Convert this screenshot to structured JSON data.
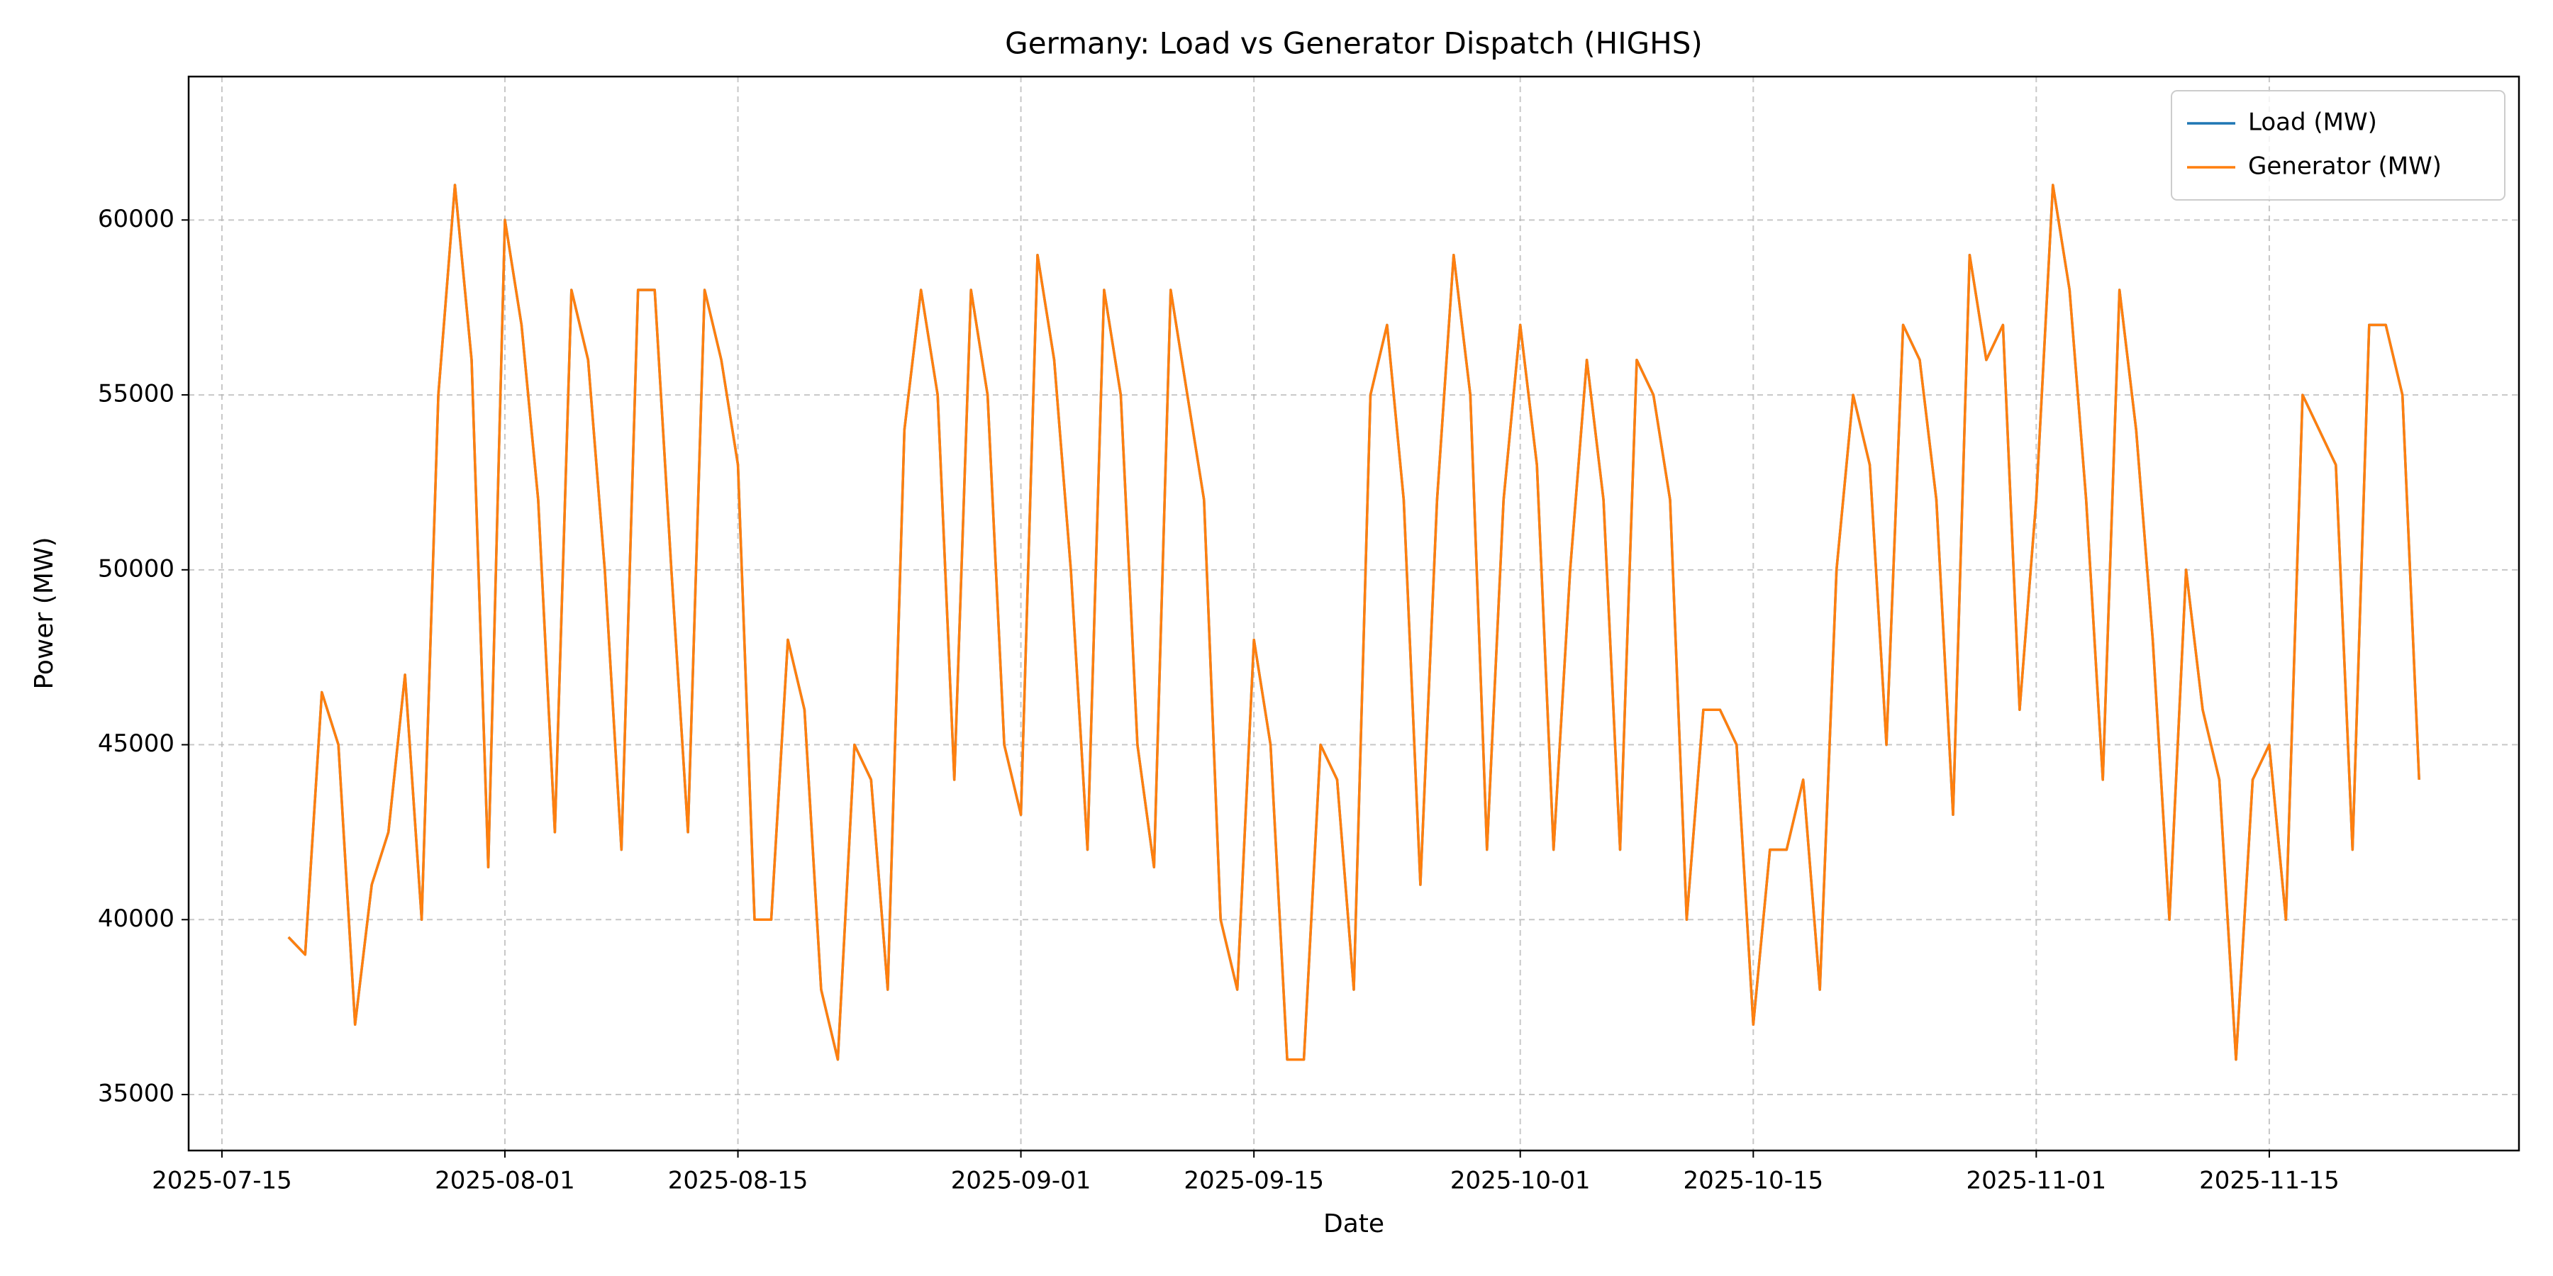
{
  "chart_data": {
    "type": "line",
    "title": "Germany: Load vs Generator Dispatch (HIGHS)",
    "x_label": "Date",
    "y_label": "Power (MW)",
    "x": [
      "2025-07-19",
      "2025-07-20",
      "2025-07-21",
      "2025-07-22",
      "2025-07-23",
      "2025-07-24",
      "2025-07-25",
      "2025-07-26",
      "2025-07-27",
      "2025-07-28",
      "2025-07-29",
      "2025-07-30",
      "2025-07-31",
      "2025-08-01",
      "2025-08-02",
      "2025-08-03",
      "2025-08-04",
      "2025-08-05",
      "2025-08-06",
      "2025-08-07",
      "2025-08-08",
      "2025-08-09",
      "2025-08-10",
      "2025-08-11",
      "2025-08-12",
      "2025-08-13",
      "2025-08-14",
      "2025-08-15",
      "2025-08-16",
      "2025-08-17",
      "2025-08-18",
      "2025-08-19",
      "2025-08-20",
      "2025-08-21",
      "2025-08-22",
      "2025-08-23",
      "2025-08-24",
      "2025-08-25",
      "2025-08-26",
      "2025-08-27",
      "2025-08-28",
      "2025-08-29",
      "2025-08-30",
      "2025-08-31",
      "2025-09-01",
      "2025-09-02",
      "2025-09-03",
      "2025-09-04",
      "2025-09-05",
      "2025-09-06",
      "2025-09-07",
      "2025-09-08",
      "2025-09-09",
      "2025-09-10",
      "2025-09-11",
      "2025-09-12",
      "2025-09-13",
      "2025-09-14",
      "2025-09-15",
      "2025-09-16",
      "2025-09-17",
      "2025-09-18",
      "2025-09-19",
      "2025-09-20",
      "2025-09-21",
      "2025-09-22",
      "2025-09-23",
      "2025-09-24",
      "2025-09-25",
      "2025-09-26",
      "2025-09-27",
      "2025-09-28",
      "2025-09-29",
      "2025-09-30",
      "2025-10-01",
      "2025-10-02",
      "2025-10-03",
      "2025-10-04",
      "2025-10-05",
      "2025-10-06",
      "2025-10-07",
      "2025-10-08",
      "2025-10-09",
      "2025-10-10",
      "2025-10-11",
      "2025-10-12",
      "2025-10-13",
      "2025-10-14",
      "2025-10-15",
      "2025-10-16",
      "2025-10-17",
      "2025-10-18",
      "2025-10-19",
      "2025-10-20",
      "2025-10-21",
      "2025-10-22",
      "2025-10-23",
      "2025-10-24",
      "2025-10-25",
      "2025-10-26",
      "2025-10-27",
      "2025-10-28",
      "2025-10-29",
      "2025-10-30",
      "2025-10-31",
      "2025-11-01",
      "2025-11-02",
      "2025-11-03",
      "2025-11-04",
      "2025-11-05",
      "2025-11-06",
      "2025-11-07",
      "2025-11-08",
      "2025-11-09",
      "2025-11-10",
      "2025-11-11",
      "2025-11-12",
      "2025-11-13",
      "2025-11-14",
      "2025-11-15",
      "2025-11-16",
      "2025-11-17",
      "2025-11-18",
      "2025-11-19",
      "2025-11-20",
      "2025-11-21",
      "2025-11-22",
      "2025-11-23",
      "2025-11-24"
    ],
    "series": [
      {
        "name": "Load (MW)",
        "color": "#1f77b4",
        "values": [
          39500,
          39000,
          46500,
          45000,
          37000,
          41000,
          42500,
          47000,
          40000,
          55000,
          61000,
          56000,
          41500,
          60000,
          57000,
          52000,
          42500,
          58000,
          56000,
          50000,
          42000,
          58000,
          58000,
          50000,
          42500,
          58000,
          56000,
          53000,
          40000,
          40000,
          48000,
          46000,
          38000,
          36000,
          45000,
          44000,
          38000,
          54000,
          58000,
          55000,
          44000,
          58000,
          55000,
          45000,
          43000,
          59000,
          56000,
          50000,
          42000,
          58000,
          55000,
          45000,
          41500,
          58000,
          55000,
          52000,
          40000,
          38000,
          48000,
          45000,
          36000,
          36000,
          45000,
          44000,
          38000,
          55000,
          57000,
          52000,
          41000,
          52000,
          59000,
          55000,
          42000,
          52000,
          57000,
          53000,
          42000,
          50000,
          56000,
          52000,
          42000,
          56000,
          55000,
          52000,
          40000,
          46000,
          46000,
          45000,
          37000,
          42000,
          42000,
          44000,
          38000,
          50000,
          55000,
          53000,
          45000,
          57000,
          56000,
          52000,
          43000,
          59000,
          56000,
          57000,
          46000,
          52000,
          61000,
          58000,
          52000,
          44000,
          58000,
          54000,
          48000,
          40000,
          50000,
          46000,
          44000,
          36000,
          44000,
          45000,
          40000,
          55000,
          54000,
          53000,
          42000,
          57000,
          57000,
          55000,
          44000
        ]
      },
      {
        "name": "Generator (MW)",
        "color": "#ff7f0e",
        "values": [
          39500,
          39000,
          46500,
          45000,
          37000,
          41000,
          42500,
          47000,
          40000,
          55000,
          61000,
          56000,
          41500,
          60000,
          57000,
          52000,
          42500,
          58000,
          56000,
          50000,
          42000,
          58000,
          58000,
          50000,
          42500,
          58000,
          56000,
          53000,
          40000,
          40000,
          48000,
          46000,
          38000,
          36000,
          45000,
          44000,
          38000,
          54000,
          58000,
          55000,
          44000,
          58000,
          55000,
          45000,
          43000,
          59000,
          56000,
          50000,
          42000,
          58000,
          55000,
          45000,
          41500,
          58000,
          55000,
          52000,
          40000,
          38000,
          48000,
          45000,
          36000,
          36000,
          45000,
          44000,
          38000,
          55000,
          57000,
          52000,
          41000,
          52000,
          59000,
          55000,
          42000,
          52000,
          57000,
          53000,
          42000,
          50000,
          56000,
          52000,
          42000,
          56000,
          55000,
          52000,
          40000,
          46000,
          46000,
          45000,
          37000,
          42000,
          42000,
          44000,
          38000,
          50000,
          55000,
          53000,
          45000,
          57000,
          56000,
          52000,
          43000,
          59000,
          56000,
          57000,
          46000,
          52000,
          61000,
          58000,
          52000,
          44000,
          58000,
          54000,
          48000,
          40000,
          50000,
          46000,
          44000,
          36000,
          44000,
          45000,
          40000,
          55000,
          54000,
          53000,
          42000,
          57000,
          57000,
          55000,
          44000
        ]
      }
    ],
    "xlim": [
      "2025-07-13",
      "2025-11-30"
    ],
    "xticks": [
      "2025-07-15",
      "2025-08-01",
      "2025-08-15",
      "2025-09-01",
      "2025-09-15",
      "2025-10-01",
      "2025-10-15",
      "2025-11-01",
      "2025-11-15"
    ],
    "ylim": [
      33400,
      64100
    ],
    "yticks": [
      35000,
      40000,
      45000,
      50000,
      55000,
      60000
    ],
    "grid": true,
    "legend": "upper right"
  }
}
